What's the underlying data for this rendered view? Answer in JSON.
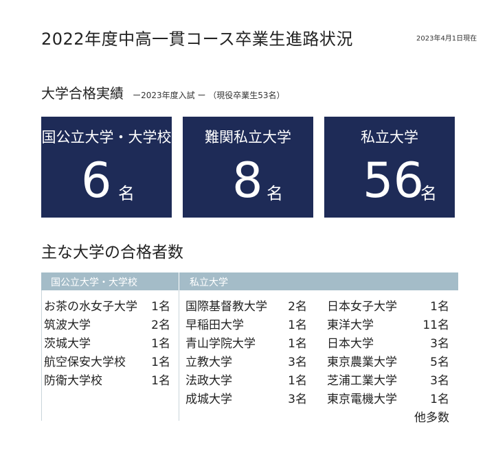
{
  "header": {
    "title": "2022年度中高一貫コース卒業生進路状況",
    "date": "2023年4月1日現在"
  },
  "results": {
    "heading": "大学合格実績",
    "subheading": "ー2023年度入試 ー （現役卒業生53名）",
    "boxes": [
      {
        "label": "国公立大学・大学校",
        "count": "6",
        "unit": "名"
      },
      {
        "label": "難関私立大学",
        "count": "8",
        "unit": "名"
      },
      {
        "label": "私立大学",
        "count": "56",
        "unit": "名"
      }
    ]
  },
  "list": {
    "heading": "主な大学の合格者数",
    "col_national": "国公立大学・大学校",
    "col_private": "私立大学",
    "national": [
      {
        "name": "お茶の水女子大学",
        "count": "1名"
      },
      {
        "name": "筑波大学",
        "count": "2名"
      },
      {
        "name": "茨城大学",
        "count": "1名"
      },
      {
        "name": "航空保安大学校",
        "count": "1名"
      },
      {
        "name": "防衛大学校",
        "count": "1名"
      }
    ],
    "private_a": [
      {
        "name": "国際基督教大学",
        "count": "2名"
      },
      {
        "name": "早稲田大学",
        "count": "1名"
      },
      {
        "name": "青山学院大学",
        "count": "1名"
      },
      {
        "name": "立教大学",
        "count": "3名"
      },
      {
        "name": "法政大学",
        "count": "1名"
      },
      {
        "name": "成城大学",
        "count": "3名"
      }
    ],
    "private_b": [
      {
        "name": "日本女子大学",
        "count": "1名"
      },
      {
        "name": "東洋大学",
        "count": "11名"
      },
      {
        "name": "日本大学",
        "count": "3名"
      },
      {
        "name": "東京農業大学",
        "count": "5名"
      },
      {
        "name": "芝浦工業大学",
        "count": "3名"
      },
      {
        "name": "東京電機大学",
        "count": "1名"
      }
    ],
    "others": "他多数"
  }
}
